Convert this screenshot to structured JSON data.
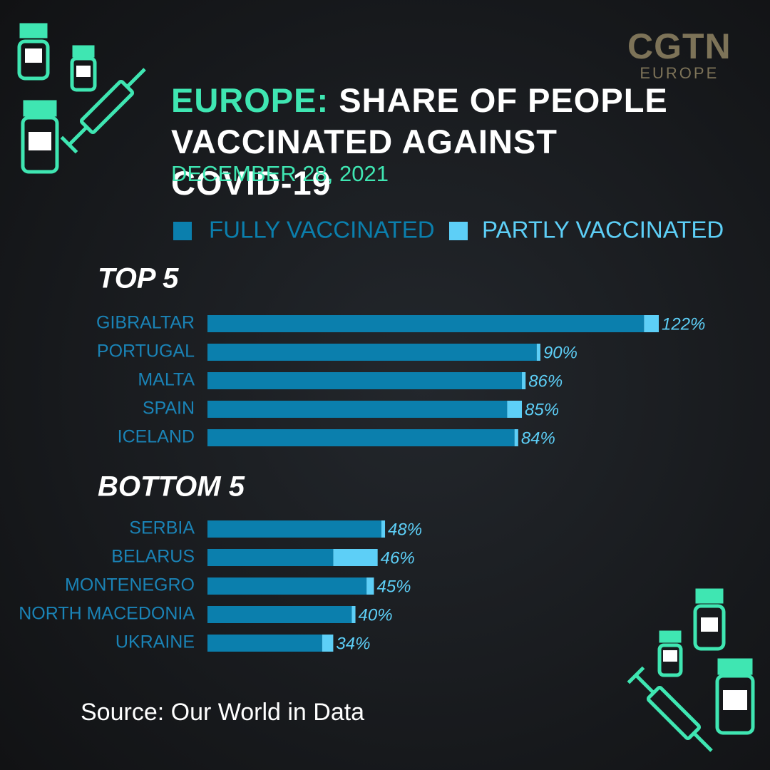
{
  "title_highlight": "EUROPE:",
  "title": "SHARE OF PEOPLE VACCINATED AGAINST COVID-19",
  "subtitle": "DECEMBER 28, 2021",
  "source": "Source: Our World in Data",
  "logo": {
    "name": "CGTN",
    "region": "EUROPE"
  },
  "chart_data": [
    {
      "type": "bar",
      "orientation": "horizontal",
      "stacked": true,
      "title": "TOP 5",
      "categories": [
        "GIBRALTAR",
        "PORTUGAL",
        "MALTA",
        "SPAIN",
        "ICELAND"
      ],
      "series": [
        {
          "name": "FULLY VACCINATED",
          "color": "#0b7fad",
          "values": [
            118,
            89,
            85,
            81,
            83
          ]
        },
        {
          "name": "PARTLY VACCINATED",
          "color": "#5dcff7",
          "values": [
            4,
            1,
            1,
            4,
            1
          ]
        }
      ],
      "value_labels": [
        "122%",
        "90%",
        "86%",
        "85%",
        "84%"
      ],
      "xlim": [
        0,
        122
      ]
    },
    {
      "type": "bar",
      "orientation": "horizontal",
      "stacked": true,
      "title": "BOTTOM 5",
      "categories": [
        "SERBIA",
        "BELARUS",
        "MONTENEGRO",
        "NORTH MACEDONIA",
        "UKRAINE"
      ],
      "series": [
        {
          "name": "FULLY VACCINATED",
          "color": "#0b7fad",
          "values": [
            47,
            34,
            43,
            39,
            31
          ]
        },
        {
          "name": "PARTLY VACCINATED",
          "color": "#5dcff7",
          "values": [
            1,
            12,
            2,
            1,
            3
          ]
        }
      ],
      "value_labels": [
        "48%",
        "46%",
        "45%",
        "40%",
        "34%"
      ],
      "xlim": [
        0,
        122
      ]
    }
  ]
}
